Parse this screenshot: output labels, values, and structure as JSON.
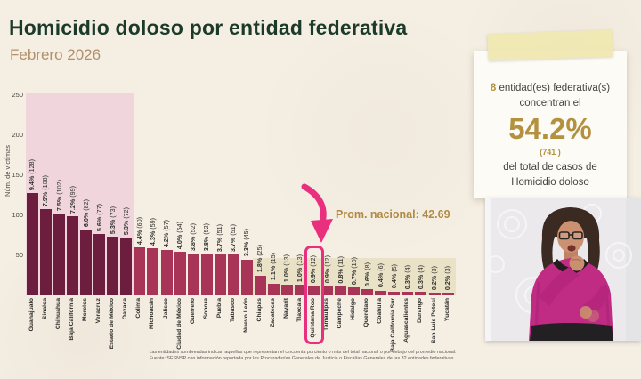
{
  "header": {
    "title": "Homicidio doloso por entidad federativa",
    "subtitle": "Febrero 2026"
  },
  "callout": {
    "count": "8",
    "line1_rest": " entidad(es) federativa(s)",
    "line2": "concentran el",
    "percent": "54.2%",
    "cases": "(741 )",
    "line3": "del total de casos de",
    "line4": "Homicidio doloso"
  },
  "chart_data": {
    "type": "bar",
    "title": "",
    "xlabel": "",
    "ylabel": "Núm. de víctimas",
    "ylim": [
      0,
      250
    ],
    "yticks": [
      50,
      100,
      150,
      200,
      250
    ],
    "grid": "off",
    "national_average": 42.69,
    "average_label": "Prom. nacional: 42.69",
    "shaded_top_group_count": 8,
    "highlighted_state": "Quintana Roo",
    "categories": [
      "Guanajuato",
      "Sinaloa",
      "Chihuahua",
      "Baja California",
      "Morelos",
      "Veracruz",
      "Estado de México",
      "Oaxaca",
      "Colima",
      "Michoacán",
      "Jalisco",
      "Ciudad de México",
      "Guerrero",
      "Sonora",
      "Puebla",
      "Tabasco",
      "Nuevo León",
      "Chiapas",
      "Zacatecas",
      "Nayarit",
      "Tlaxcala",
      "Quintana Roo",
      "Tamaulipas",
      "Campeche",
      "Hidalgo",
      "Querétaro",
      "Coahuila",
      "Baja California Sur",
      "Aguascalientes",
      "Durango",
      "San Luis Potosí",
      "Yucatán"
    ],
    "values": [
      128,
      108,
      102,
      99,
      82,
      77,
      73,
      72,
      60,
      59,
      57,
      54,
      52,
      52,
      51,
      51,
      45,
      25,
      15,
      13,
      13,
      12,
      12,
      11,
      10,
      8,
      6,
      5,
      4,
      4,
      3,
      3
    ],
    "percent_labels": [
      "9.4%",
      "7.9%",
      "7.5%",
      "7.2%",
      "6.0%",
      "5.6%",
      "5.3%",
      "5.3%",
      "4.4%",
      "4.3%",
      "4.2%",
      "4.0%",
      "3.8%",
      "3.8%",
      "3.7%",
      "3.7%",
      "3.3%",
      "1.8%",
      "1.1%",
      "1.0%",
      "1.0%",
      "0.9%",
      "0.9%",
      "0.8%",
      "0.7%",
      "0.6%",
      "0.4%",
      "0.4%",
      "0.3%",
      "0.3%",
      "0.2%",
      "0.2%"
    ]
  },
  "footnote": {
    "line1": "Las entidades sombreadas indican aquellas que representan el cincuenta porciento o más del total nacional o por debajo del promedio nacional.",
    "line2": "Fuente: SESNSP con información reportada por las Procuradurías Generales de Justicia o Fiscalías Generales de las 32 entidades federativas.."
  },
  "colors": {
    "bar_dark": "#6d1e3e",
    "bar_light": "#a83457",
    "pink_region": "#f0d6dc",
    "beige_region": "#eae2c7",
    "highlight_pink": "#e8307e",
    "gold": "#b3913f",
    "title_green": "#1b3a2a",
    "subtitle_tan": "#b2906a"
  }
}
